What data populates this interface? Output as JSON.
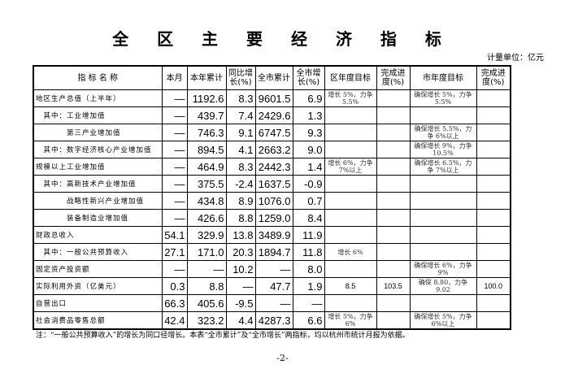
{
  "title": "全 区 主 要 经 济 指 标",
  "unit": "计量单位：亿元",
  "headers": [
    "指 标 名 称",
    "本月",
    "本年累计",
    "同比增长(%)",
    "全市累计",
    "全市增长(%)",
    "区年度目标",
    "完成进度(%)",
    "市年度目标",
    "完成进度(%)"
  ],
  "rows": [
    [
      "地区生产总值（上半年）",
      "—",
      "1192.6",
      "8.3",
      "9601.5",
      "6.9",
      "增长 5%，力争 5.5%",
      "",
      "确保增长 5%，力争 5.5%",
      ""
    ],
    [
      "　其中：工业增加值",
      "—",
      "439.7",
      "7.4",
      "2429.6",
      "1.3",
      "",
      "",
      "",
      ""
    ],
    [
      "　　　　第三产业增加值",
      "—",
      "746.3",
      "9.1",
      "6747.5",
      "9.3",
      "",
      "",
      "确保增长 5.5%，力争 6%以上",
      ""
    ],
    [
      "　其中：数字经济核心产业增加值",
      "—",
      "894.5",
      "4.1",
      "2663.2",
      "9.0",
      "",
      "",
      "确保增长 9%，力争 10.5%",
      ""
    ],
    [
      "规模以上工业增加值",
      "—",
      "464.9",
      "8.3",
      "2442.3",
      "1.4",
      "增长 6%，力争 7%以上",
      "",
      "确保增长 6.5%，力争 7%以上",
      ""
    ],
    [
      "　其中：高新技术产业增加值",
      "—",
      "375.5",
      "-2.4",
      "1637.5",
      "-0.9",
      "",
      "",
      "",
      ""
    ],
    [
      "　　　　战略性新兴产业增加值",
      "—",
      "434.8",
      "8.9",
      "1076.0",
      "0.7",
      "",
      "",
      "",
      ""
    ],
    [
      "　　　　装备制造业增加值",
      "—",
      "426.6",
      "8.8",
      "1259.0",
      "8.4",
      "",
      "",
      "",
      ""
    ],
    [
      "财政总收入",
      "54.1",
      "329.9",
      "13.8",
      "3489.9",
      "11.9",
      "",
      "",
      "",
      ""
    ],
    [
      "　其中：一般公共预算收入",
      "27.1",
      "171.0",
      "20.3",
      "1894.7",
      "11.8",
      "增长 6%",
      "",
      "",
      ""
    ],
    [
      "固定资产投资额",
      "—",
      "—",
      "10.2",
      "—",
      "8.0",
      "",
      "",
      "确保增长 6%，力争 9%",
      ""
    ],
    [
      "实际利用外资（亿美元）",
      "0.3",
      "8.8",
      "—",
      "47.7",
      "1.9",
      "8.5",
      "103.5",
      "确保 8.80，力争 9.02",
      "100.0"
    ],
    [
      "自营出口",
      "66.3",
      "405.6",
      "-9.5",
      "—",
      "—",
      "",
      "",
      "",
      ""
    ],
    [
      "社会消费品零售总额",
      "42.4",
      "323.2",
      "4.4",
      "4287.3",
      "6.6",
      "增长 5%，力争 6%",
      "",
      "确保增长 5%，力争 6%以上",
      ""
    ]
  ],
  "note": "注：“一般公共预算收入”的增长为同口径增长。本表“全市累计”及“全市增长”两指标，均以杭州市统计月报为依据。",
  "page": "-2-"
}
